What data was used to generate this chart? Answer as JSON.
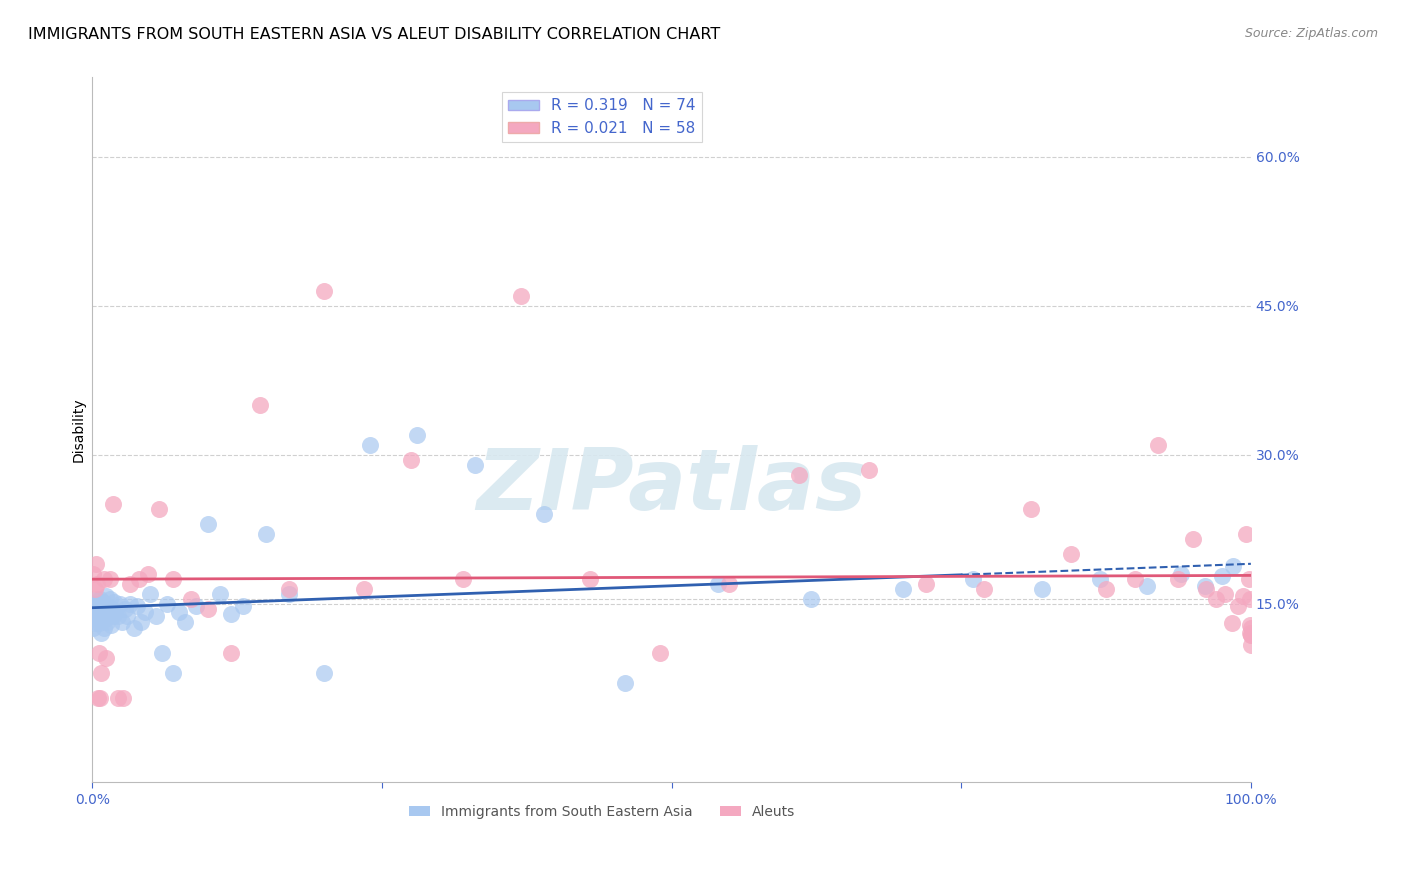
{
  "title": "IMMIGRANTS FROM SOUTH EASTERN ASIA VS ALEUT DISABILITY CORRELATION CHART",
  "source": "Source: ZipAtlas.com",
  "ylabel": "Disability",
  "xlim": [
    0,
    1
  ],
  "ylim": [
    -0.03,
    0.68
  ],
  "yticks": [
    0.15,
    0.3,
    0.45,
    0.6
  ],
  "ytick_labels": [
    "15.0%",
    "30.0%",
    "45.0%",
    "60.0%"
  ],
  "blue_color": "#a8c8f0",
  "pink_color": "#f4a8c0",
  "blue_line_color": "#3060b0",
  "pink_line_color": "#e05878",
  "r_blue": 0.319,
  "n_blue": 74,
  "r_pink": 0.021,
  "n_pink": 58,
  "legend_label_blue": "Immigrants from South Eastern Asia",
  "legend_label_pink": "Aleuts",
  "blue_x": [
    0.001,
    0.002,
    0.002,
    0.003,
    0.003,
    0.004,
    0.004,
    0.005,
    0.005,
    0.006,
    0.006,
    0.007,
    0.007,
    0.008,
    0.008,
    0.009,
    0.009,
    0.01,
    0.01,
    0.011,
    0.011,
    0.012,
    0.012,
    0.013,
    0.013,
    0.014,
    0.015,
    0.015,
    0.016,
    0.017,
    0.018,
    0.019,
    0.02,
    0.022,
    0.024,
    0.026,
    0.028,
    0.03,
    0.033,
    0.036,
    0.039,
    0.042,
    0.046,
    0.05,
    0.055,
    0.06,
    0.065,
    0.07,
    0.075,
    0.08,
    0.09,
    0.1,
    0.11,
    0.12,
    0.13,
    0.15,
    0.17,
    0.2,
    0.24,
    0.28,
    0.33,
    0.39,
    0.46,
    0.54,
    0.62,
    0.7,
    0.76,
    0.82,
    0.87,
    0.91,
    0.94,
    0.96,
    0.975,
    0.985
  ],
  "blue_y": [
    0.125,
    0.13,
    0.145,
    0.14,
    0.15,
    0.135,
    0.155,
    0.14,
    0.15,
    0.13,
    0.145,
    0.135,
    0.155,
    0.12,
    0.148,
    0.138,
    0.152,
    0.142,
    0.125,
    0.148,
    0.135,
    0.142,
    0.158,
    0.132,
    0.148,
    0.138,
    0.142,
    0.155,
    0.128,
    0.145,
    0.138,
    0.152,
    0.142,
    0.138,
    0.15,
    0.132,
    0.145,
    0.138,
    0.15,
    0.125,
    0.148,
    0.132,
    0.142,
    0.16,
    0.138,
    0.1,
    0.15,
    0.08,
    0.142,
    0.132,
    0.148,
    0.23,
    0.16,
    0.14,
    0.148,
    0.22,
    0.16,
    0.08,
    0.31,
    0.32,
    0.29,
    0.24,
    0.07,
    0.17,
    0.155,
    0.165,
    0.175,
    0.165,
    0.175,
    0.168,
    0.18,
    0.168,
    0.178,
    0.188
  ],
  "pink_x": [
    0.001,
    0.002,
    0.003,
    0.004,
    0.005,
    0.006,
    0.007,
    0.008,
    0.01,
    0.012,
    0.015,
    0.018,
    0.022,
    0.027,
    0.033,
    0.04,
    0.048,
    0.058,
    0.07,
    0.085,
    0.1,
    0.12,
    0.145,
    0.17,
    0.2,
    0.235,
    0.275,
    0.32,
    0.37,
    0.43,
    0.49,
    0.55,
    0.61,
    0.67,
    0.72,
    0.77,
    0.81,
    0.845,
    0.875,
    0.9,
    0.92,
    0.937,
    0.95,
    0.961,
    0.97,
    0.978,
    0.984,
    0.989,
    0.993,
    0.996,
    0.998,
    0.999,
    0.9993,
    0.9996,
    0.9998,
    0.9999,
    0.99995,
    0.99999
  ],
  "pink_y": [
    0.18,
    0.165,
    0.19,
    0.17,
    0.055,
    0.1,
    0.055,
    0.08,
    0.175,
    0.095,
    0.175,
    0.25,
    0.055,
    0.055,
    0.17,
    0.175,
    0.18,
    0.245,
    0.175,
    0.155,
    0.145,
    0.1,
    0.35,
    0.165,
    0.465,
    0.165,
    0.295,
    0.175,
    0.46,
    0.175,
    0.1,
    0.17,
    0.28,
    0.285,
    0.17,
    0.165,
    0.245,
    0.2,
    0.165,
    0.175,
    0.31,
    0.175,
    0.215,
    0.165,
    0.155,
    0.16,
    0.13,
    0.148,
    0.158,
    0.22,
    0.175,
    0.155,
    0.128,
    0.12,
    0.118,
    0.125,
    0.118,
    0.108
  ],
  "watermark_text": "ZIPatlas",
  "grid_color": "#d0d0d0",
  "background_color": "#ffffff",
  "tick_color": "#4466cc",
  "title_fontsize": 11.5,
  "source_fontsize": 9,
  "axis_label_fontsize": 10,
  "tick_fontsize": 10,
  "legend_fontsize": 11,
  "blue_line_x_solid_end": 0.75,
  "blue_line_x_dashed_start": 0.75,
  "pink_line_intercept": 0.182,
  "pink_line_slope": 0.006
}
